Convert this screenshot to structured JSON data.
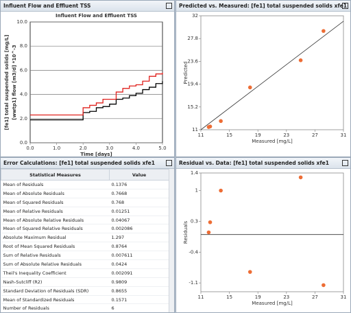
{
  "chart_data": [
    {
      "type": "line",
      "title": "Influent Flow and Effluent TSS",
      "xlabel": "Time [days]",
      "step": true,
      "grid": true,
      "ylabels": [
        "[fe1] total suspended solids [mg/L]",
        "[wwtp1] flow [m3/d] *10^-3"
      ],
      "x": [
        0,
        0.25,
        0.5,
        0.75,
        1,
        1.25,
        1.5,
        1.75,
        2,
        2.25,
        2.5,
        2.75,
        3,
        3.25,
        3.5,
        3.75,
        4,
        4.25,
        4.5,
        4.75,
        5
      ],
      "series": [
        {
          "color": "#000000",
          "values": [
            1.9,
            1.9,
            1.9,
            1.9,
            1.9,
            1.9,
            1.9,
            1.9,
            2.5,
            2.6,
            2.9,
            3.0,
            3.2,
            3.6,
            3.7,
            3.9,
            4.1,
            4.4,
            4.6,
            4.9,
            5.1
          ]
        },
        {
          "color": "#e0201c",
          "values": [
            2.3,
            2.3,
            2.3,
            2.3,
            2.3,
            2.3,
            2.3,
            2.3,
            2.9,
            3.1,
            3.3,
            3.6,
            3.6,
            4.2,
            4.5,
            4.7,
            4.8,
            5.1,
            5.5,
            5.7,
            5.8
          ]
        }
      ],
      "xlim": [
        0,
        5
      ],
      "xticks": [
        {
          "value": 0,
          "label": "0.0"
        },
        {
          "value": 1,
          "label": "1.0"
        },
        {
          "value": 2,
          "label": "2.0"
        },
        {
          "value": 3,
          "label": "3.0"
        },
        {
          "value": 4,
          "label": "4.0"
        },
        {
          "value": 5,
          "label": "5.0"
        }
      ],
      "ylim": [
        0,
        10
      ],
      "yticks": [
        {
          "value": 0,
          "label": "0.0"
        },
        {
          "value": 2,
          "label": "2.0"
        },
        {
          "value": 4,
          "label": "4.0"
        },
        {
          "value": 6,
          "label": "6.0"
        },
        {
          "value": 8,
          "label": "8.0"
        },
        {
          "value": 10,
          "label": "10.0"
        }
      ]
    },
    {
      "type": "scatter",
      "title": "Predicted vs. Measured: [fe1] total suspended solids xfe1",
      "xlabel": "Measured [mg/L]",
      "ylabel": "Predicted",
      "identity_line": true,
      "color": "#ed6d35",
      "x": [
        12.1,
        12.3,
        13.8,
        17.9,
        25,
        28.2
      ],
      "values": [
        11.5,
        11.6,
        12.6,
        18.8,
        23.8,
        29.2
      ],
      "xlim": [
        11,
        31
      ],
      "xticks": [
        11,
        15,
        19,
        23,
        27,
        31
      ],
      "ylim": [
        11,
        32
      ],
      "yticks": [
        11,
        15.2,
        19.4,
        23.6,
        27.8,
        32
      ]
    },
    {
      "type": "scatter",
      "title": "Residual vs. Data: [fe1] total suspended solids xfe1",
      "xlabel": "Measured [mg/L]",
      "ylabel": "Residuals",
      "zero_line": true,
      "color": "#ed6d35",
      "x": [
        12.1,
        12.3,
        13.8,
        17.9,
        25,
        28.2
      ],
      "values": [
        0.05,
        0.28,
        1.0,
        -0.85,
        1.3,
        -1.15
      ],
      "xlim": [
        11,
        31
      ],
      "xticks": [
        11,
        15,
        19,
        23,
        27,
        31
      ],
      "ylim": [
        -1.3,
        1.4
      ],
      "yticks": [
        1.4,
        1,
        0.3,
        -0.4,
        -1.1
      ]
    }
  ],
  "table": {
    "title": "Error Calculations: [fe1] total suspended solids xfe1",
    "columns": [
      "Statistical Measures",
      "Value"
    ],
    "rows": [
      [
        "Mean of Residuals",
        "0.1376"
      ],
      [
        "Mean of Absolute Residuals",
        "0.7668"
      ],
      [
        "Mean of Squared Residuals",
        "0.768"
      ],
      [
        "Mean of Relative Residuals",
        "0.01251"
      ],
      [
        "Mean of Absolute Relative Residuals",
        "0.04067"
      ],
      [
        "Mean of Squared Relative Residuals",
        "0.002086"
      ],
      [
        "Absolute Maximum Residual",
        "1.297"
      ],
      [
        "Root of Mean Squared Residuals",
        "0.8764"
      ],
      [
        "Sum of Relative Residuals",
        "0.007611"
      ],
      [
        "Sum of Absolute Relative Residuals",
        "0.0424"
      ],
      [
        "Theil's Inequality Coefficient",
        "0.002091"
      ],
      [
        "Nash-Sutcliff (R2)",
        "0.9809"
      ],
      [
        "Standard Deviation of Residuals (SDR)",
        "0.8655"
      ],
      [
        "Mean of Standardized Residuals",
        "0.1571"
      ],
      [
        "Number of Residuals",
        "6"
      ]
    ]
  }
}
